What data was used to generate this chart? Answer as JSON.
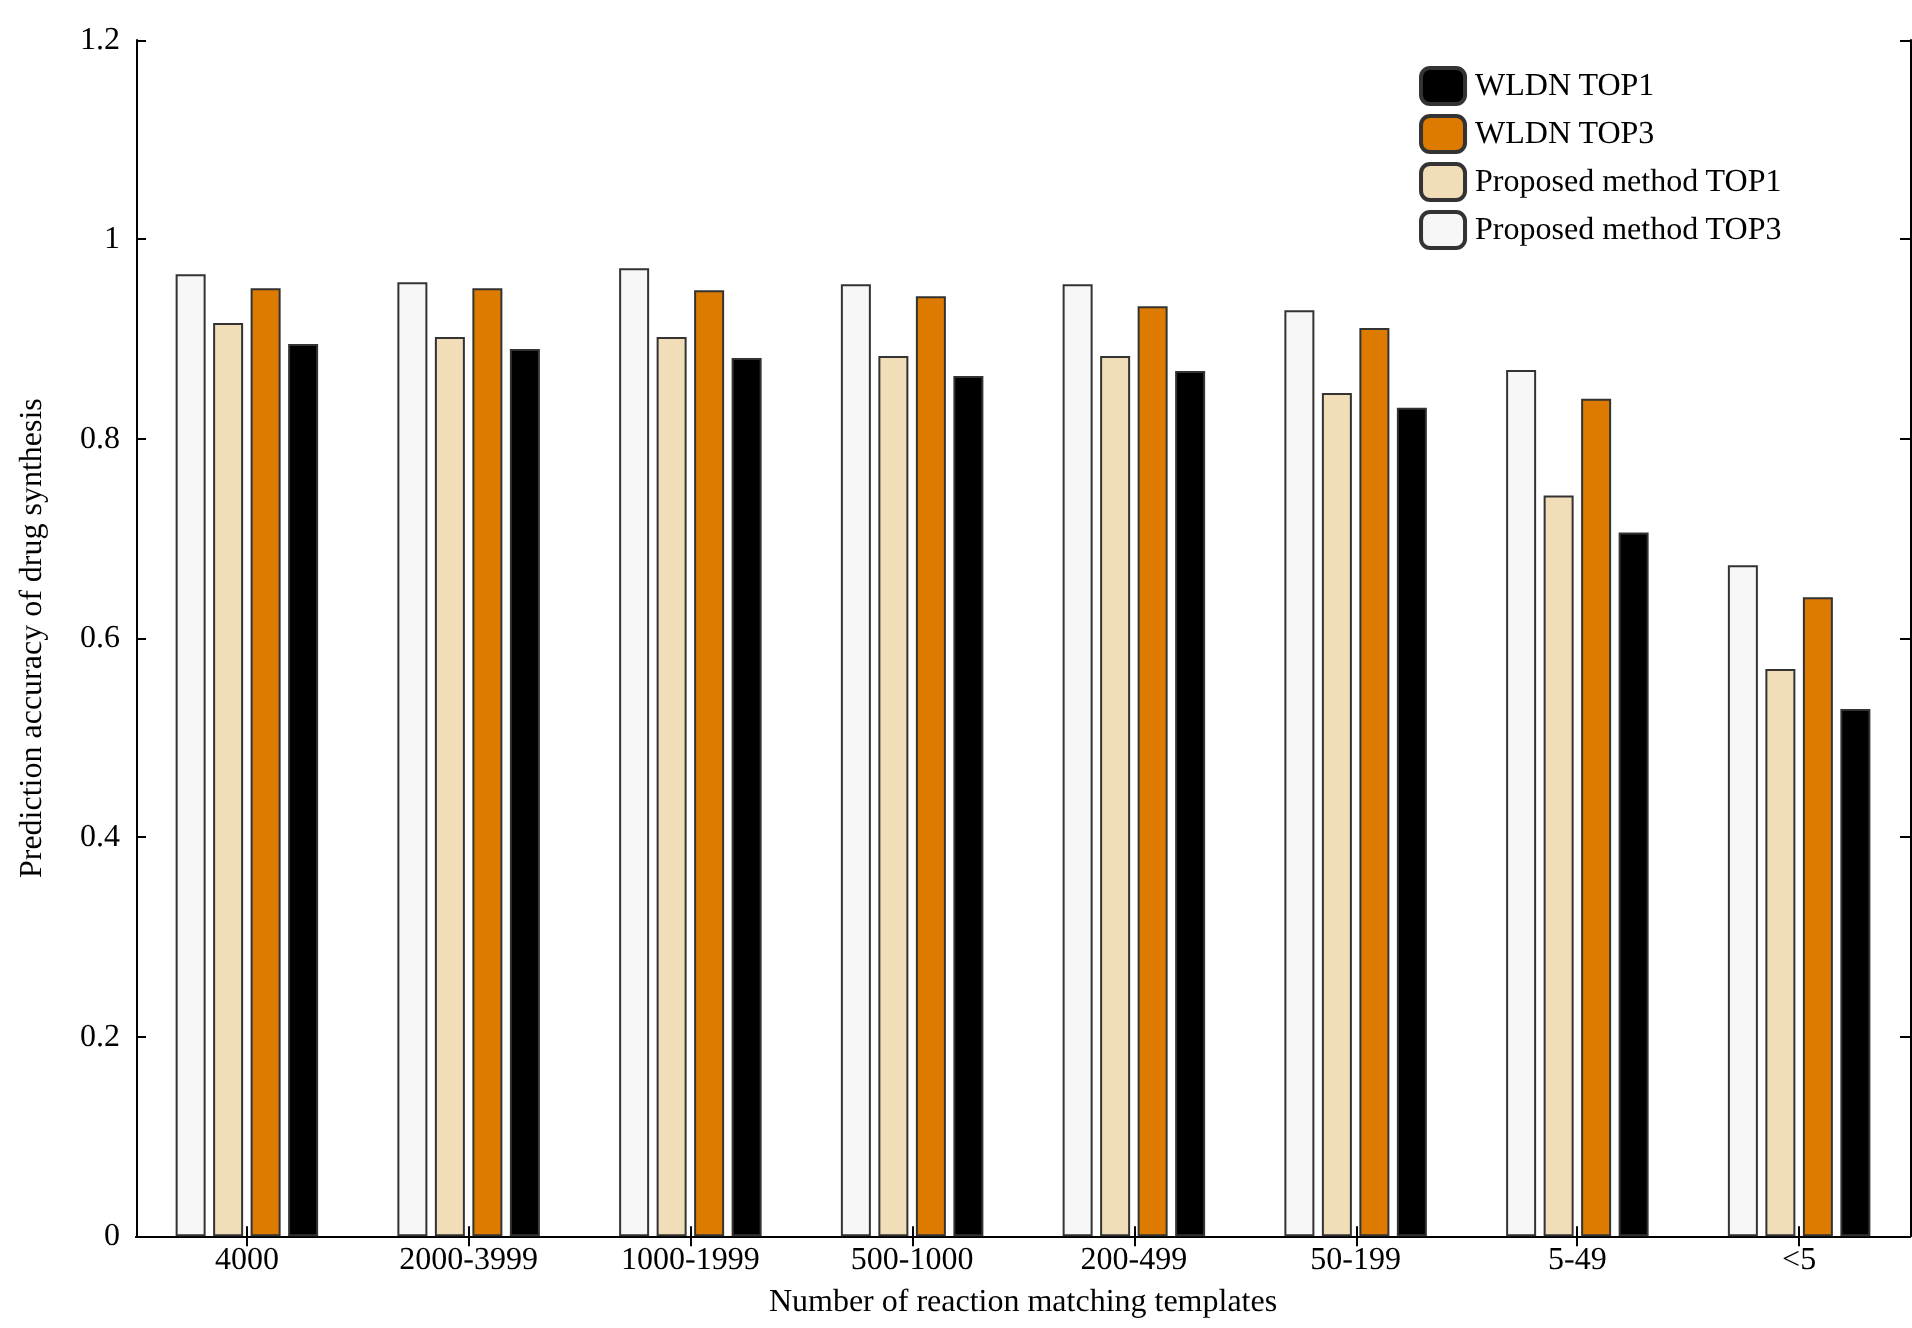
{
  "chart_data": {
    "type": "bar",
    "xlabel": "Number of reaction matching templates",
    "ylabel": "Prediction accuracy of drug synthesis",
    "categories": [
      "4000",
      "2000-3999",
      "1000-1999",
      "500-1000",
      "200-499",
      "50-199",
      "5-49",
      "<5"
    ],
    "series": [
      {
        "name": "Proposed method TOP3",
        "color": "#f7f7f7",
        "values": [
          0.965,
          0.957,
          0.971,
          0.955,
          0.955,
          0.929,
          0.869,
          0.673
        ]
      },
      {
        "name": "Proposed method TOP1",
        "color": "#f2ddb9",
        "values": [
          0.916,
          0.902,
          0.902,
          0.883,
          0.883,
          0.846,
          0.743,
          0.569
        ]
      },
      {
        "name": "WLDN TOP3",
        "color": "#dd7b00",
        "values": [
          0.951,
          0.951,
          0.949,
          0.943,
          0.933,
          0.911,
          0.84,
          0.641
        ]
      },
      {
        "name": "WLDN TOP1",
        "color": "#000000",
        "values": [
          0.895,
          0.89,
          0.881,
          0.863,
          0.868,
          0.831,
          0.706,
          0.529
        ]
      }
    ],
    "ylim": [
      0,
      1.2
    ],
    "yticks": [
      0,
      0.2,
      0.4,
      0.6,
      0.8,
      1,
      1.2
    ],
    "grid": false,
    "legend": "top right"
  }
}
